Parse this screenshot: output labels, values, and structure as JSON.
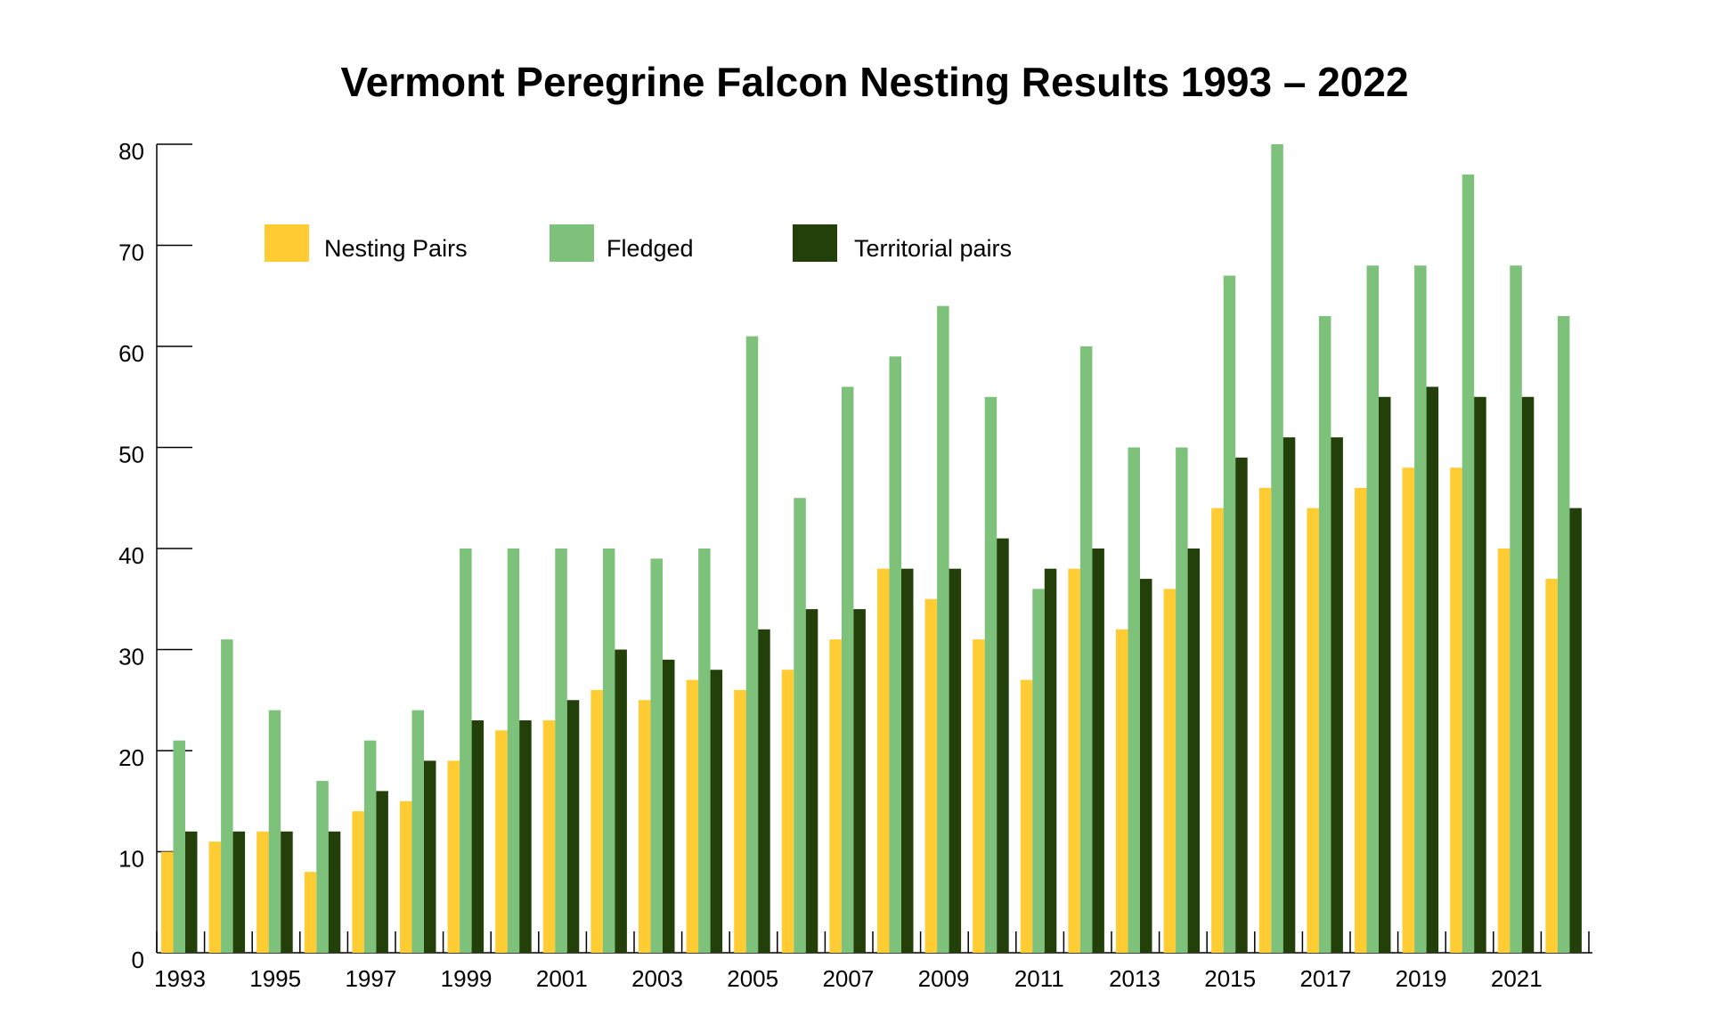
{
  "chart_data": {
    "type": "bar",
    "title": "Vermont Peregrine Falcon Nesting Results 1993 – 2022",
    "xlabel": "",
    "ylabel": "",
    "ylim": [
      0,
      80
    ],
    "yticks": [
      0,
      10,
      20,
      30,
      40,
      50,
      60,
      70,
      80
    ],
    "grid": false,
    "legend_position": "top-left",
    "categories": [
      1993,
      1994,
      1995,
      1996,
      1997,
      1998,
      1999,
      2000,
      2001,
      2002,
      2003,
      2004,
      2005,
      2006,
      2007,
      2008,
      2009,
      2010,
      2011,
      2012,
      2013,
      2014,
      2015,
      2016,
      2017,
      2018,
      2019,
      2020,
      2021,
      2022
    ],
    "xtick_labels": [
      "1993",
      "1995",
      "1997",
      "1999",
      "2001",
      "2003",
      "2005",
      "2007",
      "2009",
      "2011",
      "2013",
      "2015",
      "2017",
      "2019",
      "2021"
    ],
    "series": [
      {
        "name": "Nesting Pairs",
        "color": "#FFCC33",
        "values": [
          10,
          11,
          12,
          8,
          14,
          15,
          19,
          22,
          23,
          26,
          25,
          27,
          26,
          28,
          31,
          38,
          35,
          31,
          27,
          38,
          32,
          36,
          44,
          46,
          44,
          46,
          48,
          48,
          40,
          37
        ]
      },
      {
        "name": "Fledged",
        "color": "#7DC17A",
        "values": [
          21,
          31,
          24,
          17,
          21,
          24,
          40,
          40,
          40,
          40,
          39,
          40,
          61,
          45,
          56,
          59,
          64,
          55,
          36,
          60,
          50,
          50,
          67,
          80,
          63,
          68,
          68,
          77,
          68,
          63
        ]
      },
      {
        "name": "Territorial pairs",
        "color": "#233F0A",
        "values": [
          12,
          12,
          12,
          12,
          16,
          19,
          23,
          23,
          25,
          30,
          29,
          28,
          32,
          34,
          34,
          38,
          38,
          41,
          38,
          40,
          37,
          40,
          49,
          51,
          51,
          55,
          56,
          55,
          55,
          44
        ]
      }
    ]
  }
}
